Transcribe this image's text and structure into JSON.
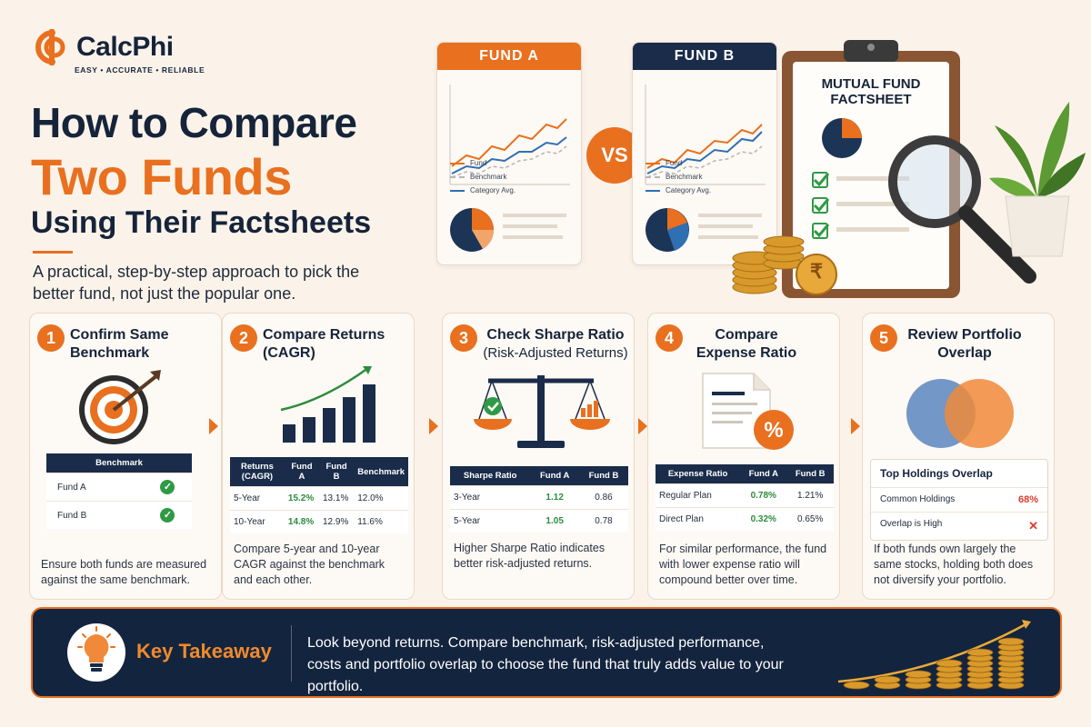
{
  "brand": {
    "name": "CalcPhi",
    "tagline": "EASY • ACCURATE • RELIABLE"
  },
  "headline": {
    "line1": "How to Compare",
    "line2": "Two Funds",
    "line3": "Using Their Factsheets",
    "subtitle": "A practical, step-by-step approach to pick the better fund, not just the popular one."
  },
  "funds": {
    "a_title": "FUND A",
    "b_title": "FUND B",
    "vs": "VS",
    "legend": [
      "Fund",
      "Benchmark",
      "Category Avg."
    ]
  },
  "factsheet": {
    "title": "MUTUAL FUND FACTSHEET",
    "currency_symbol": "₹"
  },
  "steps": [
    {
      "num": "1",
      "title": "Confirm Same Benchmark",
      "table": {
        "header": "Benchmark",
        "rows": [
          {
            "label": "Fund A",
            "check": "✓"
          },
          {
            "label": "Fund B",
            "check": "✓"
          }
        ]
      },
      "desc": "Ensure both funds are measured against the same benchmark."
    },
    {
      "num": "2",
      "title": "Compare Returns (CAGR)",
      "table": {
        "headers": [
          "Returns (CAGR)",
          "Fund A",
          "Fund B",
          "Benchmark"
        ],
        "rows": [
          [
            "5-Year",
            "15.2%",
            "13.1%",
            "12.0%"
          ],
          [
            "10-Year",
            "14.8%",
            "12.9%",
            "11.6%"
          ]
        ]
      },
      "desc": "Compare 5-year and 10-year CAGR against the benchmark and each other."
    },
    {
      "num": "3",
      "title": "Check Sharpe Ratio",
      "subtitle": "(Risk-Adjusted Returns)",
      "table": {
        "headers": [
          "Sharpe Ratio",
          "Fund A",
          "Fund B"
        ],
        "rows": [
          [
            "3-Year",
            "1.12",
            "0.86"
          ],
          [
            "5-Year",
            "1.05",
            "0.78"
          ]
        ]
      },
      "desc": "Higher Sharpe Ratio indicates better risk-adjusted returns."
    },
    {
      "num": "4",
      "title": "Compare Expense Ratio",
      "table": {
        "headers": [
          "Expense Ratio",
          "Fund A",
          "Fund B"
        ],
        "rows": [
          [
            "Regular Plan",
            "0.78%",
            "1.21%"
          ],
          [
            "Direct Plan",
            "0.32%",
            "0.65%"
          ]
        ]
      },
      "desc": "For similar performance, the fund with lower expense ratio will compound better over time."
    },
    {
      "num": "5",
      "title": "Review Portfolio Overlap",
      "table": {
        "header": "Top Holdings Overlap",
        "rows": [
          [
            "Common Holdings",
            "68%"
          ],
          [
            "Overlap is High",
            "✕"
          ]
        ]
      },
      "desc": "If both funds own largely the same stocks, holding both does not diversify your portfolio."
    }
  ],
  "icons": {
    "step1": "target-icon",
    "step2": "bar-growth-icon",
    "step3": "balance-scale-icon",
    "step4": "percent-document-icon",
    "step5": "venn-overlap-icon",
    "takeaway": "lightbulb-icon"
  },
  "takeaway": {
    "title": "Key Takeaway",
    "text": "Look beyond returns. Compare benchmark, risk-adjusted performance, costs and portfolio overlap to choose the fund that truly adds value to your portfolio."
  },
  "colors": {
    "orange": "#e8701f",
    "navy": "#16243a",
    "green": "#2e8b3e",
    "red": "#e03a2a",
    "blue": "#2f6fb3"
  }
}
